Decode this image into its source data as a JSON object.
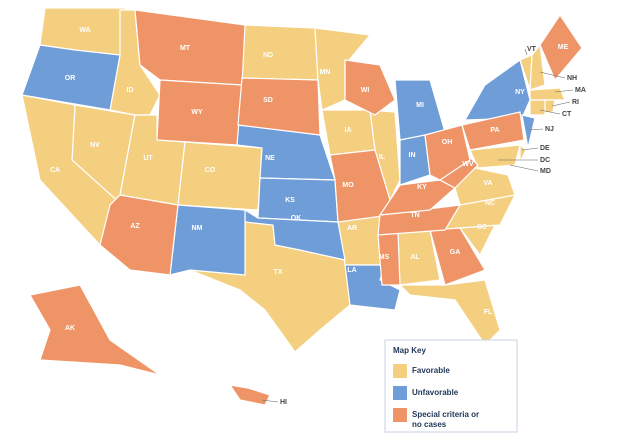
{
  "map_key": {
    "title": "Map Key",
    "items": [
      {
        "label": "Favorable",
        "color": "#f4cf7f",
        "states": [
          "WA",
          "ID",
          "ND",
          "MN",
          "NV",
          "UT",
          "CO",
          "CA",
          "IA",
          "IL",
          "TX",
          "AR",
          "AL",
          "FL",
          "SC",
          "NC",
          "VA",
          "VT",
          "NH",
          "MA",
          "RI",
          "CT",
          "DE",
          "DC",
          "MD"
        ]
      },
      {
        "label": "Unfavorable",
        "color": "#6f9dd8",
        "states": [
          "OR",
          "NE",
          "KS",
          "OK",
          "NM",
          "LA",
          "MI",
          "IN",
          "NY",
          "NJ"
        ]
      },
      {
        "label": "Special criteria or no cases",
        "color": "#ef9466",
        "states": [
          "MT",
          "WY",
          "SD",
          "WI",
          "MO",
          "AZ",
          "MS",
          "GA",
          "TN",
          "KY",
          "WV",
          "OH",
          "PA",
          "ME",
          "AK",
          "HI"
        ]
      }
    ]
  }
}
